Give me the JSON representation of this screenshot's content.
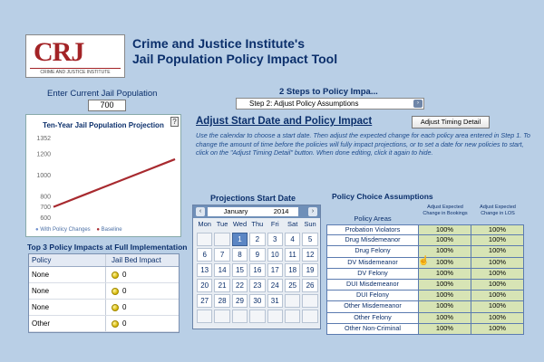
{
  "header": {
    "logo_text": "CRJ",
    "logo_subtitle": "CRIME AND JUSTICE INSTITUTE",
    "title_line1": "Crime and Justice Institute's",
    "title_line2": "Jail Population Policy Impact Tool"
  },
  "population": {
    "label": "Enter Current Jail Population",
    "value": "700"
  },
  "chart": {
    "help_label": "?",
    "title": "Ten-Year Jail Population Projection",
    "legend": {
      "with_policy": "With Policy Changes",
      "baseline": "Baseline"
    }
  },
  "chart_data": {
    "type": "line",
    "title": "Ten-Year Jail Population Projection",
    "y_ticks": [
      600,
      700,
      800,
      1000,
      1200,
      1352
    ],
    "ylim": [
      560,
      1380
    ],
    "x": [
      0,
      1,
      2,
      3,
      4,
      5,
      6,
      7,
      8,
      9,
      10
    ],
    "series": [
      {
        "name": "With Policy Changes",
        "color": "#6b8ccc",
        "values": [
          700,
          745,
          790,
          835,
          880,
          925,
          970,
          1015,
          1060,
          1105,
          1150
        ]
      },
      {
        "name": "Baseline",
        "color": "#a82a2f",
        "values": [
          700,
          745,
          790,
          835,
          880,
          925,
          970,
          1015,
          1060,
          1105,
          1150
        ]
      }
    ],
    "grid": false,
    "legend_position": "bottom"
  },
  "top3": {
    "title": "Top 3 Policy Impacts at Full Implementation",
    "col_policy": "Policy",
    "col_impact": "Jail Bed Impact",
    "rows": [
      {
        "policy": "None",
        "impact": "0"
      },
      {
        "policy": "None",
        "impact": "0"
      },
      {
        "policy": "None",
        "impact": "0"
      },
      {
        "policy": "Other",
        "impact": "0"
      }
    ]
  },
  "steps": {
    "title": "2 Steps to Policy Impa...",
    "selected": "Step 2: Adjust Policy Assumptions",
    "arrow": "›"
  },
  "adjust": {
    "title": "Adjust Start Date and Policy Impact",
    "timing_button": "Adjust Timing Detail",
    "instructions": "Use the calendar to choose a start date. Then adjust the expected change for each policy area entered in Step 1. To change the amount of time before the policies will fully impact projections, or to set a date for new policies to start, click on the \"Adjust Timing Detail\" button.  When done editing, click it again to hide."
  },
  "calendar": {
    "title": "Projections Start Date",
    "prev": "‹",
    "next": "›",
    "month": "January",
    "year": "2014",
    "dows": [
      "Mon",
      "Tue",
      "Wed",
      "Thu",
      "Fri",
      "Sat",
      "Sun"
    ],
    "cells": [
      "",
      "",
      "1",
      "2",
      "3",
      "4",
      "5",
      "6",
      "7",
      "8",
      "9",
      "10",
      "11",
      "12",
      "13",
      "14",
      "15",
      "16",
      "17",
      "18",
      "19",
      "20",
      "21",
      "22",
      "23",
      "24",
      "25",
      "26",
      "27",
      "28",
      "29",
      "30",
      "31",
      "",
      "",
      "",
      "",
      "",
      "",
      "",
      "",
      ""
    ],
    "selected": "1"
  },
  "policy": {
    "title": "Policy Choice Assumptions",
    "col_area": "Policy Areas",
    "col_bookings": "Adjust Expected Change in Bookings",
    "col_los": "Adjust Expected Change in LOS",
    "rows": [
      {
        "area": "Probation Violators",
        "bookings": "100%",
        "los": "100%"
      },
      {
        "area": "Drug Misdemeanor",
        "bookings": "100%",
        "los": "100%"
      },
      {
        "area": "Drug Felony",
        "bookings": "100%",
        "los": "100%"
      },
      {
        "area": "DV Misdemeanor",
        "bookings": "100%",
        "los": "100%"
      },
      {
        "area": "DV Felony",
        "bookings": "100%",
        "los": "100%"
      },
      {
        "area": "DUI Misdemeanor",
        "bookings": "100%",
        "los": "100%"
      },
      {
        "area": "DUI Felony",
        "bookings": "100%",
        "los": "100%"
      },
      {
        "area": "Other Misdemeanor",
        "bookings": "100%",
        "los": "100%"
      },
      {
        "area": "Other Felony",
        "bookings": "100%",
        "los": "100%"
      },
      {
        "area": "Other Non-Criminal",
        "bookings": "100%",
        "los": "100%"
      }
    ]
  }
}
